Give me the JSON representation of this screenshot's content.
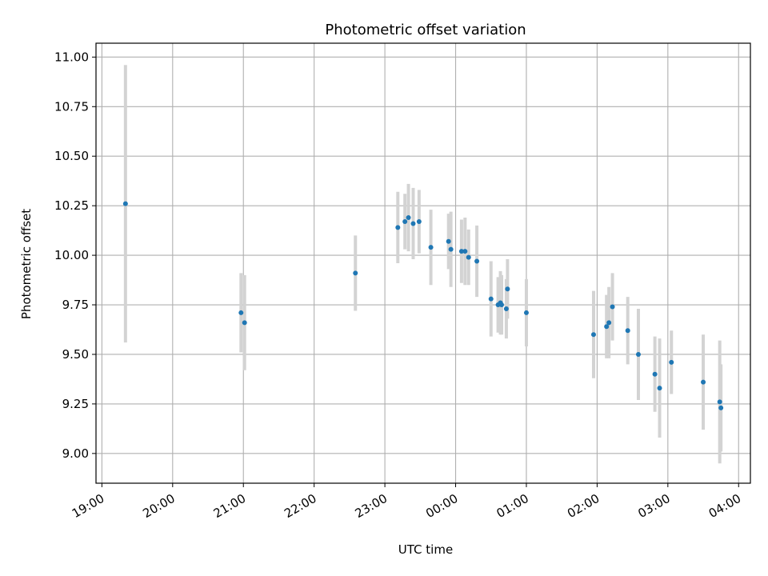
{
  "chart_data": {
    "type": "scatter",
    "title": "Photometric offset variation",
    "xlabel": "UTC time",
    "ylabel": "Photometric offset",
    "xlim": [
      "18:55",
      "04:10"
    ],
    "ylim": [
      8.85,
      11.07
    ],
    "grid": true,
    "x_ticks": [
      "19:00",
      "20:00",
      "21:00",
      "22:00",
      "23:00",
      "00:00",
      "01:00",
      "02:00",
      "03:00",
      "04:00"
    ],
    "y_ticks": [
      "9.00",
      "9.25",
      "9.50",
      "9.75",
      "10.00",
      "10.25",
      "10.50",
      "10.75",
      "11.00"
    ],
    "colors": {
      "points": "#1f77b4",
      "errorbars": "#d3d3d3",
      "grid": "#b0b0b0"
    },
    "points": [
      {
        "x": "19:20",
        "y": 10.26,
        "yerr": 0.7
      },
      {
        "x": "20:58",
        "y": 9.71,
        "yerr": 0.2
      },
      {
        "x": "21:01",
        "y": 9.66,
        "yerr": 0.24
      },
      {
        "x": "22:35",
        "y": 9.91,
        "yerr": 0.19
      },
      {
        "x": "23:11",
        "y": 10.14,
        "yerr": 0.18
      },
      {
        "x": "23:17",
        "y": 10.17,
        "yerr": 0.14
      },
      {
        "x": "23:20",
        "y": 10.19,
        "yerr": 0.17
      },
      {
        "x": "23:24",
        "y": 10.16,
        "yerr": 0.18
      },
      {
        "x": "23:29",
        "y": 10.17,
        "yerr": 0.16
      },
      {
        "x": "23:39",
        "y": 10.04,
        "yerr": 0.19
      },
      {
        "x": "23:54",
        "y": 10.07,
        "yerr": 0.14
      },
      {
        "x": "23:56",
        "y": 10.03,
        "yerr": 0.19
      },
      {
        "x": "00:05",
        "y": 10.02,
        "yerr": 0.16
      },
      {
        "x": "00:08",
        "y": 10.02,
        "yerr": 0.17
      },
      {
        "x": "00:11",
        "y": 9.99,
        "yerr": 0.14
      },
      {
        "x": "00:18",
        "y": 9.97,
        "yerr": 0.18
      },
      {
        "x": "00:30",
        "y": 9.78,
        "yerr": 0.19
      },
      {
        "x": "00:36",
        "y": 9.75,
        "yerr": 0.14
      },
      {
        "x": "00:38",
        "y": 9.76,
        "yerr": 0.16
      },
      {
        "x": "00:39",
        "y": 9.75,
        "yerr": 0.15
      },
      {
        "x": "00:43",
        "y": 9.73,
        "yerr": 0.15
      },
      {
        "x": "00:44",
        "y": 9.83,
        "yerr": 0.15
      },
      {
        "x": "01:00",
        "y": 9.71,
        "yerr": 0.17
      },
      {
        "x": "01:57",
        "y": 9.6,
        "yerr": 0.22
      },
      {
        "x": "02:08",
        "y": 9.64,
        "yerr": 0.16
      },
      {
        "x": "02:10",
        "y": 9.66,
        "yerr": 0.18
      },
      {
        "x": "02:13",
        "y": 9.74,
        "yerr": 0.17
      },
      {
        "x": "02:26",
        "y": 9.62,
        "yerr": 0.17
      },
      {
        "x": "02:35",
        "y": 9.5,
        "yerr": 0.23
      },
      {
        "x": "02:49",
        "y": 9.4,
        "yerr": 0.19
      },
      {
        "x": "02:53",
        "y": 9.33,
        "yerr": 0.25
      },
      {
        "x": "03:03",
        "y": 9.46,
        "yerr": 0.16
      },
      {
        "x": "03:30",
        "y": 9.36,
        "yerr": 0.24
      },
      {
        "x": "03:44",
        "y": 9.26,
        "yerr": 0.31
      },
      {
        "x": "03:45",
        "y": 9.23,
        "yerr": 0.22
      }
    ]
  }
}
